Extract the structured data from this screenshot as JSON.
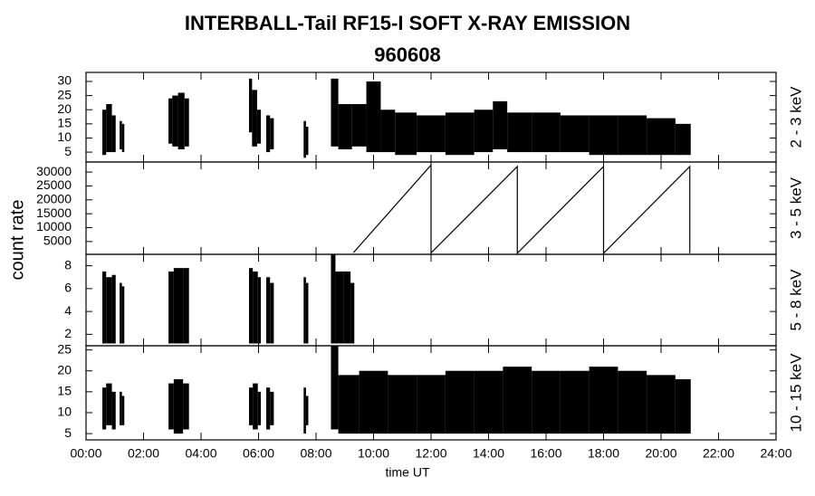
{
  "chart_data": {
    "type": "panels",
    "title": "INTERBALL-Tail RF15-I SOFT X-RAY EMISSION",
    "subtitle": "960608",
    "xlabel": "time UT",
    "ylabel": "count rate",
    "xlim": [
      0,
      24
    ],
    "xticks": [
      {
        "value": 0,
        "label": "00:00"
      },
      {
        "value": 2,
        "label": "02:00"
      },
      {
        "value": 4,
        "label": "04:00"
      },
      {
        "value": 6,
        "label": "06:00"
      },
      {
        "value": 8,
        "label": "08:00"
      },
      {
        "value": 10,
        "label": "10:00"
      },
      {
        "value": 12,
        "label": "12:00"
      },
      {
        "value": 14,
        "label": "14:00"
      },
      {
        "value": 16,
        "label": "16:00"
      },
      {
        "value": 18,
        "label": "18:00"
      },
      {
        "value": 20,
        "label": "20:00"
      },
      {
        "value": 22,
        "label": "22:00"
      },
      {
        "value": 24,
        "label": "24:00"
      }
    ],
    "panels": [
      {
        "type": "range",
        "ylim": [
          1.5,
          33.2
        ],
        "yticks": [
          5,
          10,
          15,
          20,
          25,
          30
        ],
        "x": [
          0.6,
          0.8,
          1.0,
          1.1,
          1.2,
          1.3,
          1.4,
          2.9,
          3.1,
          3.3,
          3.55,
          3.7,
          5.7,
          5.85,
          6.05,
          6.2,
          6.3,
          6.5,
          6.6,
          7.6,
          7.7,
          7.8,
          8.55,
          9,
          9.5,
          10,
          10.5,
          11,
          12,
          13,
          14,
          14.3,
          15,
          16,
          17,
          18,
          19,
          20,
          21
        ],
        "series": [
          {
            "name": "2 - 3 keV",
            "color": "#000000",
            "values": [
              20,
              22,
              18,
              null,
              16,
              15,
              null,
              24,
              25,
              26,
              24,
              null,
              31,
              27,
              20,
              null,
              18,
              17,
              null,
              16,
              14,
              null,
              31,
              22,
              22,
              30,
              20,
              19,
              18,
              19,
              20,
              23,
              19,
              19,
              18,
              18,
              18,
              17,
              15
            ],
            "lows": [
              4,
              5,
              5,
              null,
              6,
              5,
              null,
              8,
              7,
              6,
              7,
              null,
              12,
              7,
              8,
              null,
              5,
              6,
              null,
              3,
              4,
              null,
              7,
              6,
              7,
              5,
              5,
              4,
              5,
              4,
              5,
              6,
              5,
              5,
              5,
              4,
              4,
              4,
              4
            ]
          }
        ]
      },
      {
        "type": "line",
        "ylim": [
          400,
          33600
        ],
        "yticks": [
          5000,
          10000,
          15000,
          20000,
          25000,
          30000
        ],
        "x": [
          9.3,
          12,
          12,
          15,
          15,
          18,
          18,
          21,
          21
        ],
        "series": [
          {
            "name": "3 - 5 keV",
            "color": "#000000",
            "values": [
              1000,
              32500,
              900,
              32000,
              800,
              32000,
              800,
              32000,
              800
            ]
          }
        ]
      },
      {
        "type": "range",
        "ylim": [
          1,
          9
        ],
        "yticks": [
          2,
          4,
          6,
          8
        ],
        "x": [
          0.6,
          0.8,
          1.0,
          1.1,
          1.2,
          1.3,
          1.4,
          2.9,
          3.2,
          3.55,
          3.7,
          5.7,
          5.9,
          6.05,
          6.2,
          6.3,
          6.5,
          6.6,
          7.6,
          7.7,
          7.8,
          8.55,
          8.8,
          9.1,
          9.3
        ],
        "series": [
          {
            "name": "5 - 8 keV",
            "color": "#000000",
            "values": [
              7.5,
              7,
              7.2,
              null,
              6.5,
              6.2,
              null,
              7.5,
              7.8,
              7.8,
              null,
              7.8,
              7.5,
              7,
              null,
              7,
              6.5,
              null,
              7,
              6.5,
              null,
              9,
              7.5,
              7.5,
              6.5
            ],
            "lows": [
              1.2,
              1.2,
              1.2,
              null,
              1.2,
              1.2,
              null,
              1.2,
              1.2,
              1.2,
              null,
              1.2,
              1.2,
              1.2,
              null,
              1.2,
              1.2,
              null,
              1.2,
              1.2,
              null,
              1.2,
              1.2,
              1.2,
              1.2
            ]
          }
        ]
      },
      {
        "type": "range",
        "ylim": [
          3.5,
          26
        ],
        "yticks": [
          5,
          10,
          15,
          20,
          25
        ],
        "x": [
          0.6,
          0.8,
          1.0,
          1.1,
          1.2,
          1.3,
          1.4,
          2.9,
          3.2,
          3.55,
          3.7,
          5.7,
          5.9,
          6.05,
          6.2,
          6.3,
          6.5,
          6.6,
          7.6,
          7.7,
          7.8,
          8.55,
          9,
          10,
          11,
          12,
          13,
          14,
          15,
          16,
          17,
          18,
          19,
          20,
          21
        ],
        "series": [
          {
            "name": "10 - 15 keV",
            "color": "#000000",
            "values": [
              16,
              17,
              15,
              null,
              15,
              14,
              null,
              17,
              18,
              17,
              null,
              16,
              17,
              15,
              null,
              16,
              15,
              null,
              16,
              14,
              null,
              26,
              19,
              20,
              19,
              19,
              20,
              20,
              21,
              20,
              20,
              21,
              20,
              19,
              18
            ],
            "lows": [
              6,
              7,
              6,
              null,
              7,
              7,
              null,
              6,
              5,
              6,
              null,
              7,
              6,
              7,
              null,
              6,
              7,
              null,
              5,
              7,
              null,
              6,
              5,
              5,
              5,
              5,
              5,
              5,
              5,
              5,
              5,
              5,
              5,
              5,
              5
            ]
          }
        ]
      }
    ]
  }
}
